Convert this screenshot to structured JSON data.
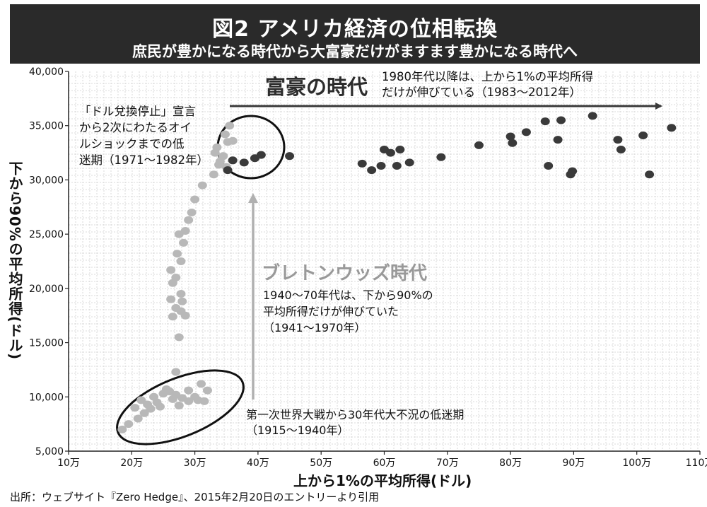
{
  "header": {
    "title": "図2 アメリカ経済の位相転換",
    "subtitle": "庶民が豊かになる時代から大富豪だけがますます豊かになる時代へ"
  },
  "source_note": "出所：ウェブサイト『Zero Hedge』、2015年2月20日のエントリーより引用",
  "annotations": {
    "era_rich_title": "富豪の時代",
    "era_rich_l1": "1980年代以降は、上から1%の平均所得",
    "era_rich_l2": "だけが伸びている（1983〜2012年）",
    "stagnation_l1": "「ドル兌換停止」宣言",
    "stagnation_l2": "から2次にわたるオイ",
    "stagnation_l3": "ルショックまでの低",
    "stagnation_l4": "迷期（1971〜1982年）",
    "bretton_title": "ブレトンウッズ時代",
    "bretton_l1": "1940〜70年代は、下から90%の",
    "bretton_l2": "平均所得だけが伸びていた",
    "bretton_l3": "（1941〜1970年）",
    "ww1_l1": "第一次世界大戦から30年代大不況の低迷期",
    "ww1_l2": "（1915〜1940年）"
  },
  "colors": {
    "dark_point": "#3a3a3a",
    "light_point": "#b8b8b8",
    "grid": "#d0d0d0",
    "arrow_dark": "#3a3a3a",
    "arrow_light": "#b0b0b0",
    "header_bg": "#2a2a2a"
  },
  "chart_data": {
    "type": "scatter",
    "xlabel": "上から1%の平均所得(ドル)",
    "ylabel": "下から90%の平均所得(ドル)",
    "xlim": [
      100000,
      1100000
    ],
    "ylim": [
      5000,
      40000
    ],
    "x_ticks": [
      {
        "value": 100000,
        "label": "10万"
      },
      {
        "value": 200000,
        "label": "20万"
      },
      {
        "value": 300000,
        "label": "30万"
      },
      {
        "value": 400000,
        "label": "40万"
      },
      {
        "value": 500000,
        "label": "50万"
      },
      {
        "value": 600000,
        "label": "60万"
      },
      {
        "value": 700000,
        "label": "70万"
      },
      {
        "value": 800000,
        "label": "80万"
      },
      {
        "value": 900000,
        "label": "90万"
      },
      {
        "value": 1000000,
        "label": "100万"
      },
      {
        "value": 1100000,
        "label": "110万"
      }
    ],
    "y_ticks": [
      {
        "value": 5000,
        "label": "5,000"
      },
      {
        "value": 10000,
        "label": "10,000"
      },
      {
        "value": 15000,
        "label": "15,000"
      },
      {
        "value": 20000,
        "label": "20,000"
      },
      {
        "value": 25000,
        "label": "25,000"
      },
      {
        "value": 30000,
        "label": "30,000"
      },
      {
        "value": 35000,
        "label": "35,000"
      },
      {
        "value": 40000,
        "label": "40,000"
      }
    ],
    "grid": true,
    "series": [
      {
        "name": "1915〜1940年",
        "color": "light",
        "points": [
          [
            185000,
            7000
          ],
          [
            195000,
            7500
          ],
          [
            210000,
            8000
          ],
          [
            205000,
            9000
          ],
          [
            215000,
            9700
          ],
          [
            220000,
            8500
          ],
          [
            225000,
            9300
          ],
          [
            235000,
            10000
          ],
          [
            240000,
            9500
          ],
          [
            250000,
            10300
          ],
          [
            255000,
            10700
          ],
          [
            260000,
            10500
          ],
          [
            265000,
            9800
          ],
          [
            270000,
            10200
          ],
          [
            275000,
            9200
          ],
          [
            280000,
            9900
          ],
          [
            290000,
            9600
          ],
          [
            300000,
            10000
          ],
          [
            305000,
            9700
          ],
          [
            310000,
            11200
          ],
          [
            315000,
            9600
          ],
          [
            320000,
            10600
          ],
          [
            230000,
            8900
          ],
          [
            245000,
            9100
          ],
          [
            290000,
            10600
          ]
        ]
      },
      {
        "name": "1941〜1970年",
        "color": "light",
        "points": [
          [
            270000,
            12300
          ],
          [
            275000,
            15500
          ],
          [
            285000,
            17500
          ],
          [
            278000,
            17900
          ],
          [
            265000,
            17400
          ],
          [
            270000,
            18200
          ],
          [
            280000,
            18800
          ],
          [
            262000,
            19000
          ],
          [
            278000,
            19500
          ],
          [
            265000,
            20500
          ],
          [
            270000,
            21000
          ],
          [
            262000,
            21700
          ],
          [
            278000,
            22500
          ],
          [
            272000,
            23200
          ],
          [
            282000,
            24200
          ],
          [
            275000,
            25000
          ],
          [
            285000,
            25300
          ],
          [
            290000,
            26300
          ],
          [
            295000,
            27000
          ],
          [
            300000,
            28200
          ],
          [
            312000,
            29500
          ],
          [
            330000,
            30500
          ],
          [
            340000,
            31700
          ],
          [
            335000,
            33000
          ],
          [
            348000,
            34200
          ],
          [
            355000,
            35000
          ],
          [
            332000,
            32500
          ],
          [
            345000,
            32200
          ],
          [
            352000,
            33500
          ],
          [
            360000,
            33600
          ],
          [
            338000,
            31400
          ],
          [
            350000,
            31200
          ]
        ]
      },
      {
        "name": "1971〜1982年",
        "color": "dark",
        "points": [
          [
            352000,
            30900
          ],
          [
            360000,
            31800
          ],
          [
            378000,
            31600
          ],
          [
            395000,
            32000
          ],
          [
            405000,
            32300
          ]
        ]
      },
      {
        "name": "1983〜2012年",
        "color": "dark",
        "points": [
          [
            450000,
            32200
          ],
          [
            565000,
            31500
          ],
          [
            580000,
            30900
          ],
          [
            595000,
            31300
          ],
          [
            600000,
            32800
          ],
          [
            610000,
            32500
          ],
          [
            625000,
            32800
          ],
          [
            620000,
            31300
          ],
          [
            640000,
            31600
          ],
          [
            690000,
            32100
          ],
          [
            750000,
            33200
          ],
          [
            800000,
            34000
          ],
          [
            803000,
            33400
          ],
          [
            825000,
            34400
          ],
          [
            855000,
            35400
          ],
          [
            860000,
            31300
          ],
          [
            875000,
            33700
          ],
          [
            880000,
            35500
          ],
          [
            895000,
            30500
          ],
          [
            898000,
            30800
          ],
          [
            930000,
            35900
          ],
          [
            970000,
            33700
          ],
          [
            975000,
            32800
          ],
          [
            1010000,
            34100
          ],
          [
            1020000,
            30500
          ],
          [
            1055000,
            34800
          ]
        ]
      }
    ]
  }
}
